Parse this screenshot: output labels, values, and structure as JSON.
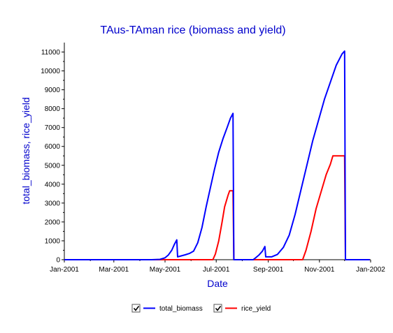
{
  "chart_data": {
    "type": "line",
    "title": "TAus-TAman rice (biomass and yield)",
    "xlabel": "Date",
    "ylabel": "total_biomass, rice_yield",
    "xlim": [
      "2001-01-01",
      "2002-01-01"
    ],
    "ylim": [
      0,
      11500
    ],
    "xticks": [
      "2001-01-01",
      "2001-03-01",
      "2001-05-01",
      "2001-07-01",
      "2001-09-01",
      "2001-11-01",
      "2002-01-01"
    ],
    "xtick_labels": [
      "Jan-2001",
      "Mar-2001",
      "May-2001",
      "Jul-2001",
      "Sep-2001",
      "Nov-2001",
      "Jan-2002"
    ],
    "yticks": [
      0,
      1000,
      2000,
      3000,
      4000,
      5000,
      6000,
      7000,
      8000,
      9000,
      10000,
      11000
    ],
    "ytick_labels": [
      "0",
      "1000",
      "2000",
      "3000",
      "4000",
      "5000",
      "6000",
      "7000",
      "8000",
      "9000",
      "10000",
      "11000"
    ],
    "grid": false,
    "legend_position": "bottom-center",
    "series": [
      {
        "name": "total_biomass",
        "color": "#0000ff",
        "points": [
          [
            "2001-01-01",
            0
          ],
          [
            "2001-04-15",
            0
          ],
          [
            "2001-04-25",
            20
          ],
          [
            "2001-05-01",
            100
          ],
          [
            "2001-05-05",
            250
          ],
          [
            "2001-05-09",
            500
          ],
          [
            "2001-05-12",
            800
          ],
          [
            "2001-05-15",
            1050
          ],
          [
            "2001-05-16",
            150
          ],
          [
            "2001-05-20",
            200
          ],
          [
            "2001-05-25",
            260
          ],
          [
            "2001-05-30",
            330
          ],
          [
            "2001-06-04",
            450
          ],
          [
            "2001-06-09",
            900
          ],
          [
            "2001-06-14",
            1700
          ],
          [
            "2001-06-19",
            2800
          ],
          [
            "2001-06-24",
            3800
          ],
          [
            "2001-06-29",
            4800
          ],
          [
            "2001-07-04",
            5700
          ],
          [
            "2001-07-09",
            6400
          ],
          [
            "2001-07-14",
            7000
          ],
          [
            "2001-07-18",
            7500
          ],
          [
            "2001-07-21",
            7750
          ],
          [
            "2001-07-22",
            0
          ],
          [
            "2001-08-14",
            0
          ],
          [
            "2001-08-17",
            100
          ],
          [
            "2001-08-21",
            250
          ],
          [
            "2001-08-25",
            450
          ],
          [
            "2001-08-28",
            700
          ],
          [
            "2001-08-29",
            150
          ],
          [
            "2001-09-05",
            150
          ],
          [
            "2001-09-12",
            280
          ],
          [
            "2001-09-19",
            650
          ],
          [
            "2001-09-26",
            1300
          ],
          [
            "2001-10-03",
            2400
          ],
          [
            "2001-10-10",
            3700
          ],
          [
            "2001-10-17",
            5000
          ],
          [
            "2001-10-24",
            6300
          ],
          [
            "2001-10-31",
            7400
          ],
          [
            "2001-11-07",
            8500
          ],
          [
            "2001-11-14",
            9400
          ],
          [
            "2001-11-21",
            10300
          ],
          [
            "2001-11-28",
            10900
          ],
          [
            "2001-12-01",
            11050
          ],
          [
            "2001-12-02",
            0
          ],
          [
            "2001-12-31",
            0
          ]
        ]
      },
      {
        "name": "rice_yield",
        "color": "#ff0000",
        "points": [
          [
            "2001-01-01",
            0
          ],
          [
            "2001-06-27",
            0
          ],
          [
            "2001-06-30",
            300
          ],
          [
            "2001-07-04",
            1000
          ],
          [
            "2001-07-08",
            2000
          ],
          [
            "2001-07-11",
            2800
          ],
          [
            "2001-07-15",
            3400
          ],
          [
            "2001-07-17",
            3650
          ],
          [
            "2001-07-21",
            3650
          ],
          [
            "2001-07-22",
            0
          ],
          [
            "2001-10-12",
            0
          ],
          [
            "2001-10-16",
            500
          ],
          [
            "2001-10-22",
            1500
          ],
          [
            "2001-10-28",
            2700
          ],
          [
            "2001-11-03",
            3600
          ],
          [
            "2001-11-09",
            4500
          ],
          [
            "2001-11-14",
            5050
          ],
          [
            "2001-11-17",
            5500
          ],
          [
            "2001-12-01",
            5500
          ],
          [
            "2001-12-02",
            0
          ],
          [
            "2001-12-31",
            0
          ]
        ]
      }
    ]
  },
  "legend": {
    "items": [
      {
        "label": "total_biomass",
        "checked": true,
        "color": "#0000ff"
      },
      {
        "label": "rice_yield",
        "checked": true,
        "color": "#ff0000"
      }
    ]
  }
}
